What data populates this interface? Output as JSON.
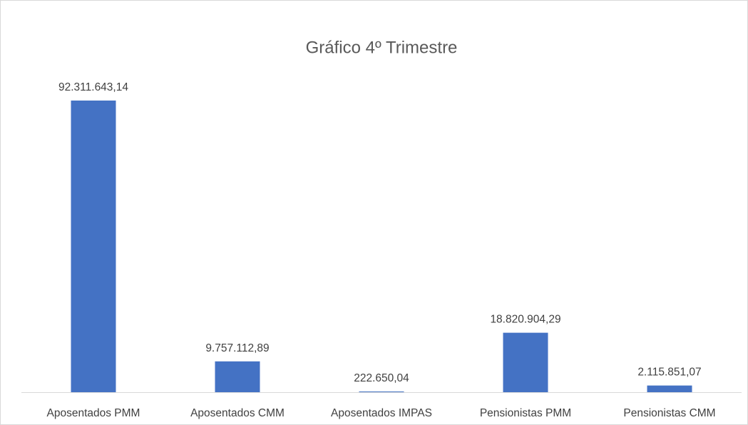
{
  "chart_data": {
    "type": "bar",
    "title": "Gráfico 4º Trimestre",
    "categories": [
      "Aposentados PMM",
      "Aposentados CMM",
      "Aposentados IMPAS",
      "Pensionistas PMM",
      "Pensionistas CMM"
    ],
    "values": [
      92311643.14,
      9757112.89,
      222650.04,
      18820904.29,
      2115851.07
    ],
    "value_labels": [
      "92.311.643,14",
      "9.757.112,89",
      "222.650,04",
      "18.820.904,29",
      "2.115.851,07"
    ],
    "color": "#4472c4"
  }
}
